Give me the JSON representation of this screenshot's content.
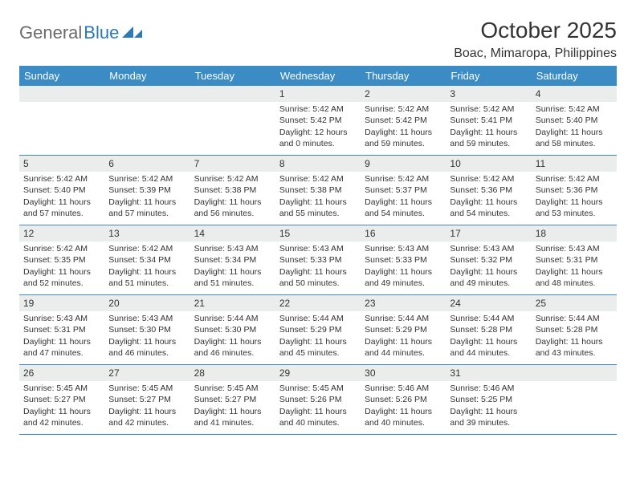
{
  "logo": {
    "part1": "General",
    "part2": "Blue"
  },
  "title": "October 2025",
  "location": "Boac, Mimaropa, Philippines",
  "colors": {
    "header_bg": "#3b8bc4",
    "header_text": "#ffffff",
    "daynum_bg": "#ebecec",
    "border": "#3b8bc4",
    "logo_gray": "#6b6b6b",
    "logo_blue": "#2a7ab8",
    "text": "#333333",
    "page_bg": "#ffffff"
  },
  "day_names": [
    "Sunday",
    "Monday",
    "Tuesday",
    "Wednesday",
    "Thursday",
    "Friday",
    "Saturday"
  ],
  "weeks": [
    [
      {
        "n": "",
        "empty": true
      },
      {
        "n": "",
        "empty": true
      },
      {
        "n": "",
        "empty": true
      },
      {
        "n": "1",
        "sr": "Sunrise: 5:42 AM",
        "ss": "Sunset: 5:42 PM",
        "d1": "Daylight: 12 hours",
        "d2": "and 0 minutes."
      },
      {
        "n": "2",
        "sr": "Sunrise: 5:42 AM",
        "ss": "Sunset: 5:42 PM",
        "d1": "Daylight: 11 hours",
        "d2": "and 59 minutes."
      },
      {
        "n": "3",
        "sr": "Sunrise: 5:42 AM",
        "ss": "Sunset: 5:41 PM",
        "d1": "Daylight: 11 hours",
        "d2": "and 59 minutes."
      },
      {
        "n": "4",
        "sr": "Sunrise: 5:42 AM",
        "ss": "Sunset: 5:40 PM",
        "d1": "Daylight: 11 hours",
        "d2": "and 58 minutes."
      }
    ],
    [
      {
        "n": "5",
        "sr": "Sunrise: 5:42 AM",
        "ss": "Sunset: 5:40 PM",
        "d1": "Daylight: 11 hours",
        "d2": "and 57 minutes."
      },
      {
        "n": "6",
        "sr": "Sunrise: 5:42 AM",
        "ss": "Sunset: 5:39 PM",
        "d1": "Daylight: 11 hours",
        "d2": "and 57 minutes."
      },
      {
        "n": "7",
        "sr": "Sunrise: 5:42 AM",
        "ss": "Sunset: 5:38 PM",
        "d1": "Daylight: 11 hours",
        "d2": "and 56 minutes."
      },
      {
        "n": "8",
        "sr": "Sunrise: 5:42 AM",
        "ss": "Sunset: 5:38 PM",
        "d1": "Daylight: 11 hours",
        "d2": "and 55 minutes."
      },
      {
        "n": "9",
        "sr": "Sunrise: 5:42 AM",
        "ss": "Sunset: 5:37 PM",
        "d1": "Daylight: 11 hours",
        "d2": "and 54 minutes."
      },
      {
        "n": "10",
        "sr": "Sunrise: 5:42 AM",
        "ss": "Sunset: 5:36 PM",
        "d1": "Daylight: 11 hours",
        "d2": "and 54 minutes."
      },
      {
        "n": "11",
        "sr": "Sunrise: 5:42 AM",
        "ss": "Sunset: 5:36 PM",
        "d1": "Daylight: 11 hours",
        "d2": "and 53 minutes."
      }
    ],
    [
      {
        "n": "12",
        "sr": "Sunrise: 5:42 AM",
        "ss": "Sunset: 5:35 PM",
        "d1": "Daylight: 11 hours",
        "d2": "and 52 minutes."
      },
      {
        "n": "13",
        "sr": "Sunrise: 5:42 AM",
        "ss": "Sunset: 5:34 PM",
        "d1": "Daylight: 11 hours",
        "d2": "and 51 minutes."
      },
      {
        "n": "14",
        "sr": "Sunrise: 5:43 AM",
        "ss": "Sunset: 5:34 PM",
        "d1": "Daylight: 11 hours",
        "d2": "and 51 minutes."
      },
      {
        "n": "15",
        "sr": "Sunrise: 5:43 AM",
        "ss": "Sunset: 5:33 PM",
        "d1": "Daylight: 11 hours",
        "d2": "and 50 minutes."
      },
      {
        "n": "16",
        "sr": "Sunrise: 5:43 AM",
        "ss": "Sunset: 5:33 PM",
        "d1": "Daylight: 11 hours",
        "d2": "and 49 minutes."
      },
      {
        "n": "17",
        "sr": "Sunrise: 5:43 AM",
        "ss": "Sunset: 5:32 PM",
        "d1": "Daylight: 11 hours",
        "d2": "and 49 minutes."
      },
      {
        "n": "18",
        "sr": "Sunrise: 5:43 AM",
        "ss": "Sunset: 5:31 PM",
        "d1": "Daylight: 11 hours",
        "d2": "and 48 minutes."
      }
    ],
    [
      {
        "n": "19",
        "sr": "Sunrise: 5:43 AM",
        "ss": "Sunset: 5:31 PM",
        "d1": "Daylight: 11 hours",
        "d2": "and 47 minutes."
      },
      {
        "n": "20",
        "sr": "Sunrise: 5:43 AM",
        "ss": "Sunset: 5:30 PM",
        "d1": "Daylight: 11 hours",
        "d2": "and 46 minutes."
      },
      {
        "n": "21",
        "sr": "Sunrise: 5:44 AM",
        "ss": "Sunset: 5:30 PM",
        "d1": "Daylight: 11 hours",
        "d2": "and 46 minutes."
      },
      {
        "n": "22",
        "sr": "Sunrise: 5:44 AM",
        "ss": "Sunset: 5:29 PM",
        "d1": "Daylight: 11 hours",
        "d2": "and 45 minutes."
      },
      {
        "n": "23",
        "sr": "Sunrise: 5:44 AM",
        "ss": "Sunset: 5:29 PM",
        "d1": "Daylight: 11 hours",
        "d2": "and 44 minutes."
      },
      {
        "n": "24",
        "sr": "Sunrise: 5:44 AM",
        "ss": "Sunset: 5:28 PM",
        "d1": "Daylight: 11 hours",
        "d2": "and 44 minutes."
      },
      {
        "n": "25",
        "sr": "Sunrise: 5:44 AM",
        "ss": "Sunset: 5:28 PM",
        "d1": "Daylight: 11 hours",
        "d2": "and 43 minutes."
      }
    ],
    [
      {
        "n": "26",
        "sr": "Sunrise: 5:45 AM",
        "ss": "Sunset: 5:27 PM",
        "d1": "Daylight: 11 hours",
        "d2": "and 42 minutes."
      },
      {
        "n": "27",
        "sr": "Sunrise: 5:45 AM",
        "ss": "Sunset: 5:27 PM",
        "d1": "Daylight: 11 hours",
        "d2": "and 42 minutes."
      },
      {
        "n": "28",
        "sr": "Sunrise: 5:45 AM",
        "ss": "Sunset: 5:27 PM",
        "d1": "Daylight: 11 hours",
        "d2": "and 41 minutes."
      },
      {
        "n": "29",
        "sr": "Sunrise: 5:45 AM",
        "ss": "Sunset: 5:26 PM",
        "d1": "Daylight: 11 hours",
        "d2": "and 40 minutes."
      },
      {
        "n": "30",
        "sr": "Sunrise: 5:46 AM",
        "ss": "Sunset: 5:26 PM",
        "d1": "Daylight: 11 hours",
        "d2": "and 40 minutes."
      },
      {
        "n": "31",
        "sr": "Sunrise: 5:46 AM",
        "ss": "Sunset: 5:25 PM",
        "d1": "Daylight: 11 hours",
        "d2": "and 39 minutes."
      },
      {
        "n": "",
        "empty": true
      }
    ]
  ]
}
